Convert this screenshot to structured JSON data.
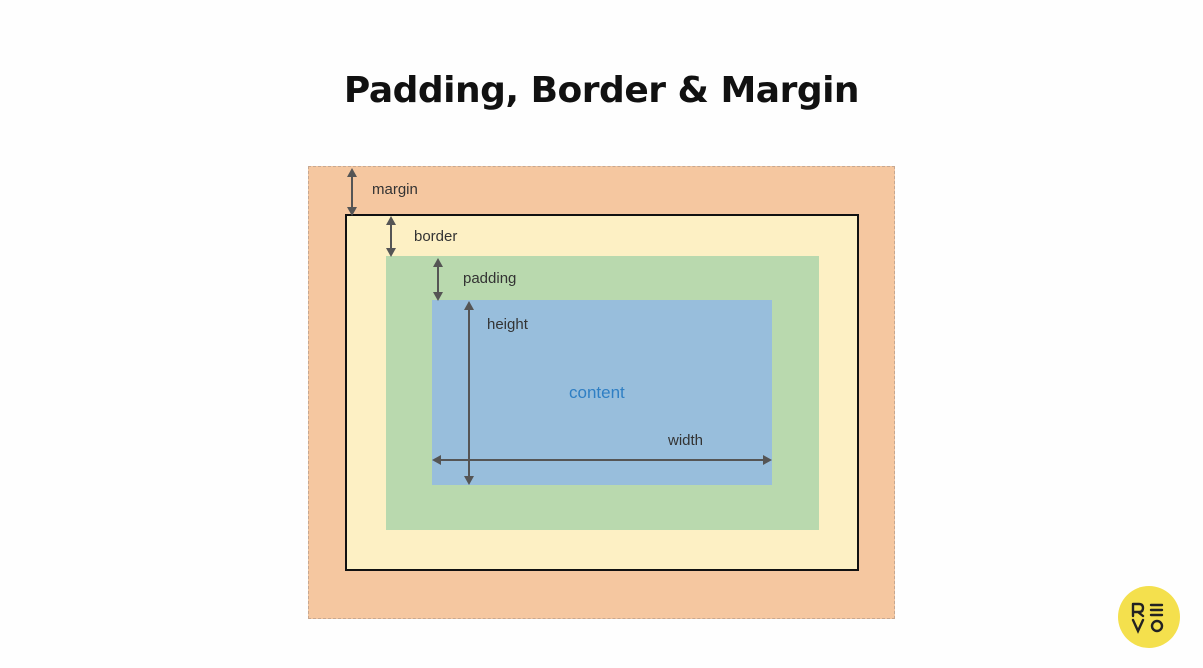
{
  "slide": {
    "title": "Padding, Border & Margin"
  },
  "diagram": {
    "labels": {
      "margin": "margin",
      "border": "border",
      "padding": "padding",
      "height": "height",
      "content": "content",
      "width": "width"
    },
    "colors": {
      "margin": "#f5c7a0",
      "border": "#fdf0c4",
      "padding": "#b9d9ae",
      "content": "#98bedc",
      "content_text": "#2f7fc4",
      "arrow": "#555555"
    }
  },
  "logo": {
    "text": "REVO"
  }
}
